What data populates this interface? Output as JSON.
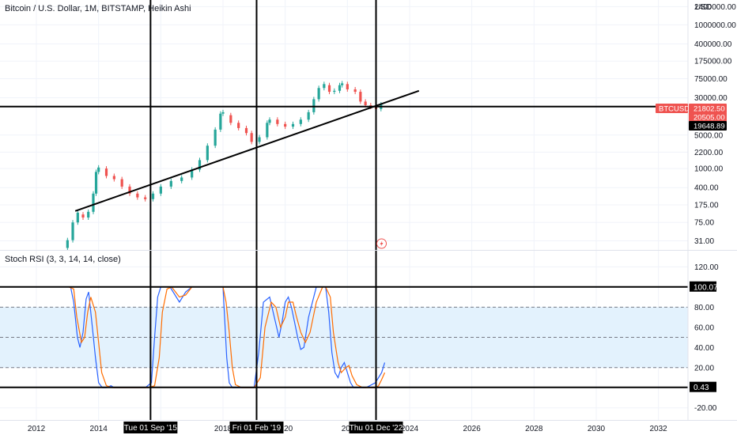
{
  "header": {
    "title": "Bitcoin / U.S. Dollar, 1M, BITSTAMP, Heikin Ashi",
    "currency": "USD"
  },
  "indicator": {
    "label": "Stoch RSI (3, 3, 14, 14, close)"
  },
  "colors": {
    "up": "#26a69a",
    "down": "#ef5350",
    "k_line": "#2962ff",
    "d_line": "#ff6d00",
    "band_fill": "#e3f2fd",
    "grid": "#f0f3fa",
    "drawing": "#000000"
  },
  "chart_data": [
    {
      "type": "candlestick",
      "title": "Bitcoin / U.S. Dollar, 1M, BITSTAMP, Heikin Ashi",
      "scale": "log",
      "y_tick_labels": [
        "2400000.00",
        "1000000.00",
        "400000.00",
        "175000.00",
        "75000.00",
        "30000.00",
        "5000.00",
        "2200.00",
        "1000.00",
        "400.00",
        "175.00",
        "75.00",
        "31.00"
      ],
      "y_ticks": [
        2400000,
        1000000,
        400000,
        175000,
        75000,
        30000,
        5000,
        2200,
        1000,
        400,
        175,
        75,
        31
      ],
      "ylim": [
        20,
        3300000
      ],
      "x_tick_labels": [
        "2012",
        "2014",
        "2016",
        "2018",
        "2020",
        "2022",
        "2024",
        "2026",
        "2028",
        "2030",
        "2032"
      ],
      "xlim": [
        2010.83,
        2032.95
      ],
      "series": [
        {
          "name": "BTCUSD",
          "points": [
            {
              "x": 2013.0,
              "o": 22,
              "c": 32
            },
            {
              "x": 2013.17,
              "o": 32,
              "c": 75
            },
            {
              "x": 2013.33,
              "o": 75,
              "c": 120
            },
            {
              "x": 2013.5,
              "o": 110,
              "c": 95
            },
            {
              "x": 2013.67,
              "o": 95,
              "c": 125
            },
            {
              "x": 2013.83,
              "o": 125,
              "c": 300
            },
            {
              "x": 2013.92,
              "o": 300,
              "c": 850
            },
            {
              "x": 2014.0,
              "o": 850,
              "c": 1050
            },
            {
              "x": 2014.25,
              "o": 1000,
              "c": 700
            },
            {
              "x": 2014.5,
              "o": 700,
              "c": 600
            },
            {
              "x": 2014.75,
              "o": 600,
              "c": 420
            },
            {
              "x": 2015.0,
              "o": 420,
              "c": 300
            },
            {
              "x": 2015.25,
              "o": 300,
              "c": 250
            },
            {
              "x": 2015.5,
              "o": 250,
              "c": 230
            },
            {
              "x": 2015.75,
              "o": 230,
              "c": 300
            },
            {
              "x": 2016.0,
              "o": 300,
              "c": 420
            },
            {
              "x": 2016.33,
              "o": 420,
              "c": 550
            },
            {
              "x": 2016.67,
              "o": 550,
              "c": 650
            },
            {
              "x": 2017.0,
              "o": 650,
              "c": 950
            },
            {
              "x": 2017.25,
              "o": 950,
              "c": 1500
            },
            {
              "x": 2017.5,
              "o": 1500,
              "c": 3000
            },
            {
              "x": 2017.75,
              "o": 3000,
              "c": 6500
            },
            {
              "x": 2017.92,
              "o": 6500,
              "c": 14000
            },
            {
              "x": 2018.0,
              "o": 14000,
              "c": 15000
            },
            {
              "x": 2018.25,
              "o": 13000,
              "c": 9000
            },
            {
              "x": 2018.5,
              "o": 9000,
              "c": 7000
            },
            {
              "x": 2018.75,
              "o": 7000,
              "c": 5500
            },
            {
              "x": 2018.92,
              "o": 5500,
              "c": 3600
            },
            {
              "x": 2019.17,
              "o": 3600,
              "c": 4500
            },
            {
              "x": 2019.42,
              "o": 4500,
              "c": 9000
            },
            {
              "x": 2019.5,
              "o": 9000,
              "c": 10500
            },
            {
              "x": 2019.75,
              "o": 10500,
              "c": 8500
            },
            {
              "x": 2020.0,
              "o": 8500,
              "c": 7500
            },
            {
              "x": 2020.25,
              "o": 7500,
              "c": 8500
            },
            {
              "x": 2020.5,
              "o": 8500,
              "c": 10500
            },
            {
              "x": 2020.75,
              "o": 10500,
              "c": 15000
            },
            {
              "x": 2020.92,
              "o": 15000,
              "c": 28000
            },
            {
              "x": 2021.08,
              "o": 28000,
              "c": 48000
            },
            {
              "x": 2021.25,
              "o": 48000,
              "c": 58000
            },
            {
              "x": 2021.42,
              "o": 55000,
              "c": 40000
            },
            {
              "x": 2021.58,
              "o": 40000,
              "c": 42000
            },
            {
              "x": 2021.75,
              "o": 42000,
              "c": 55000
            },
            {
              "x": 2021.83,
              "o": 55000,
              "c": 60000
            },
            {
              "x": 2022.0,
              "o": 58000,
              "c": 45000
            },
            {
              "x": 2022.25,
              "o": 45000,
              "c": 40000
            },
            {
              "x": 2022.42,
              "o": 40000,
              "c": 25000
            },
            {
              "x": 2022.58,
              "o": 25000,
              "c": 21000
            },
            {
              "x": 2022.75,
              "o": 21000,
              "c": 19500
            },
            {
              "x": 2022.92,
              "o": 19500,
              "c": 17500
            },
            {
              "x": 2023.08,
              "o": 17500,
              "c": 21802.5
            }
          ]
        }
      ],
      "annotations": {
        "price_labels": [
          {
            "text": "BTCUSD",
            "value": 21802.5,
            "style": "series-name"
          },
          {
            "text": "21802.50",
            "value": 21802.5,
            "style": "red"
          },
          {
            "text": "20505.00",
            "value": 20505.0,
            "style": "red-sub"
          },
          {
            "text": "19648.89",
            "value": 19648.89,
            "style": "black"
          }
        ],
        "horizontal_lines": [
          19648.89
        ],
        "trend_line": {
          "from": {
            "x": 2013.25,
            "y": 130
          },
          "to": {
            "x": 2024.3,
            "y": 42000
          }
        }
      }
    },
    {
      "type": "line",
      "title": "Stoch RSI (3, 3, 14, 14, close)",
      "y_tick_labels": [
        "120.00",
        "100.07",
        "80.00",
        "60.00",
        "40.00",
        "20.00",
        "0.43",
        "-20.00"
      ],
      "y_ticks": [
        120,
        100.07,
        80,
        60,
        40,
        20,
        0.43,
        -20
      ],
      "ylim": [
        -32,
        136
      ],
      "band": [
        20,
        80
      ],
      "horizontal_lines": [
        100.07,
        0.43
      ],
      "series": [
        {
          "name": "K",
          "x": [
            2012.98,
            2013.1,
            2013.2,
            2013.32,
            2013.4,
            2013.5,
            2013.6,
            2013.68,
            2013.8,
            2013.9,
            2014.0,
            2014.12,
            2014.25,
            2014.4,
            2014.5,
            2014.7,
            2015.0,
            2015.3,
            2015.5,
            2015.7,
            2015.8,
            2015.9,
            2016.0,
            2016.15,
            2016.3,
            2016.6,
            2016.8,
            2017.0,
            2017.3,
            2017.5,
            2017.8,
            2018.0,
            2018.05,
            2018.12,
            2018.2,
            2018.3,
            2018.45,
            2018.6,
            2018.8,
            2019.0,
            2019.15,
            2019.3,
            2019.5,
            2019.65,
            2019.8,
            2019.9,
            2020.0,
            2020.1,
            2020.2,
            2020.3,
            2020.4,
            2020.5,
            2020.6,
            2020.75,
            2021.0,
            2021.2,
            2021.3,
            2021.4,
            2021.5,
            2021.6,
            2021.7,
            2021.8,
            2021.9,
            2022.0,
            2022.1,
            2022.2,
            2022.4,
            2022.6,
            2022.9,
            2023.1,
            2023.2
          ],
          "values": [
            100,
            100,
            85,
            50,
            40,
            55,
            88,
            95,
            60,
            30,
            5,
            0,
            0,
            2,
            0,
            0,
            0,
            0,
            0,
            5,
            50,
            90,
            100,
            100,
            100,
            85,
            95,
            100,
            100,
            100,
            100,
            100,
            70,
            30,
            5,
            0,
            0,
            0,
            0,
            0,
            35,
            85,
            90,
            70,
            50,
            65,
            85,
            90,
            80,
            65,
            50,
            38,
            40,
            70,
            100,
            100,
            100,
            75,
            35,
            15,
            10,
            20,
            25,
            15,
            5,
            0,
            0,
            0,
            5,
            15,
            25
          ]
        },
        {
          "name": "D",
          "x": [
            2013.05,
            2013.2,
            2013.3,
            2013.45,
            2013.55,
            2013.65,
            2013.75,
            2013.9,
            2014.0,
            2014.1,
            2014.25,
            2014.45,
            2014.7,
            2015.0,
            2015.3,
            2015.6,
            2015.8,
            2015.95,
            2016.05,
            2016.2,
            2016.35,
            2016.6,
            2016.8,
            2017.0,
            2017.3,
            2017.5,
            2017.8,
            2018.0,
            2018.1,
            2018.2,
            2018.3,
            2018.4,
            2018.6,
            2018.8,
            2019.0,
            2019.2,
            2019.35,
            2019.55,
            2019.7,
            2019.85,
            2020.0,
            2020.1,
            2020.25,
            2020.35,
            2020.5,
            2020.65,
            2020.8,
            2021.0,
            2021.2,
            2021.3,
            2021.45,
            2021.55,
            2021.7,
            2021.8,
            2021.95,
            2022.05,
            2022.15,
            2022.3,
            2022.5,
            2022.9,
            2023.0,
            2023.1,
            2023.2
          ],
          "values": [
            100,
            98,
            70,
            45,
            50,
            75,
            90,
            75,
            45,
            15,
            2,
            0,
            0,
            0,
            0,
            0,
            2,
            30,
            75,
            98,
            100,
            90,
            92,
            100,
            100,
            100,
            100,
            100,
            85,
            55,
            20,
            3,
            0,
            0,
            0,
            10,
            60,
            85,
            80,
            60,
            70,
            85,
            85,
            72,
            55,
            45,
            55,
            85,
            100,
            100,
            90,
            55,
            25,
            15,
            20,
            22,
            12,
            3,
            0,
            0,
            2,
            8,
            15
          ]
        }
      ]
    }
  ],
  "x_axis": {
    "ticks": [
      "2012",
      "2014",
      "2016",
      "2018",
      "2020",
      "2022",
      "2024",
      "2026",
      "2028",
      "2030",
      "2032"
    ],
    "visible_fragments": [
      "20",
      "20",
      "20"
    ],
    "cursor_labels": [
      "Tue 01 Sep '15",
      "Fri 01 Feb '19",
      "Thu 01 Dec '22"
    ],
    "vertical_lines_x": [
      2015.67,
      2019.08,
      2022.92
    ]
  },
  "alert_icon": "lightning-icon"
}
